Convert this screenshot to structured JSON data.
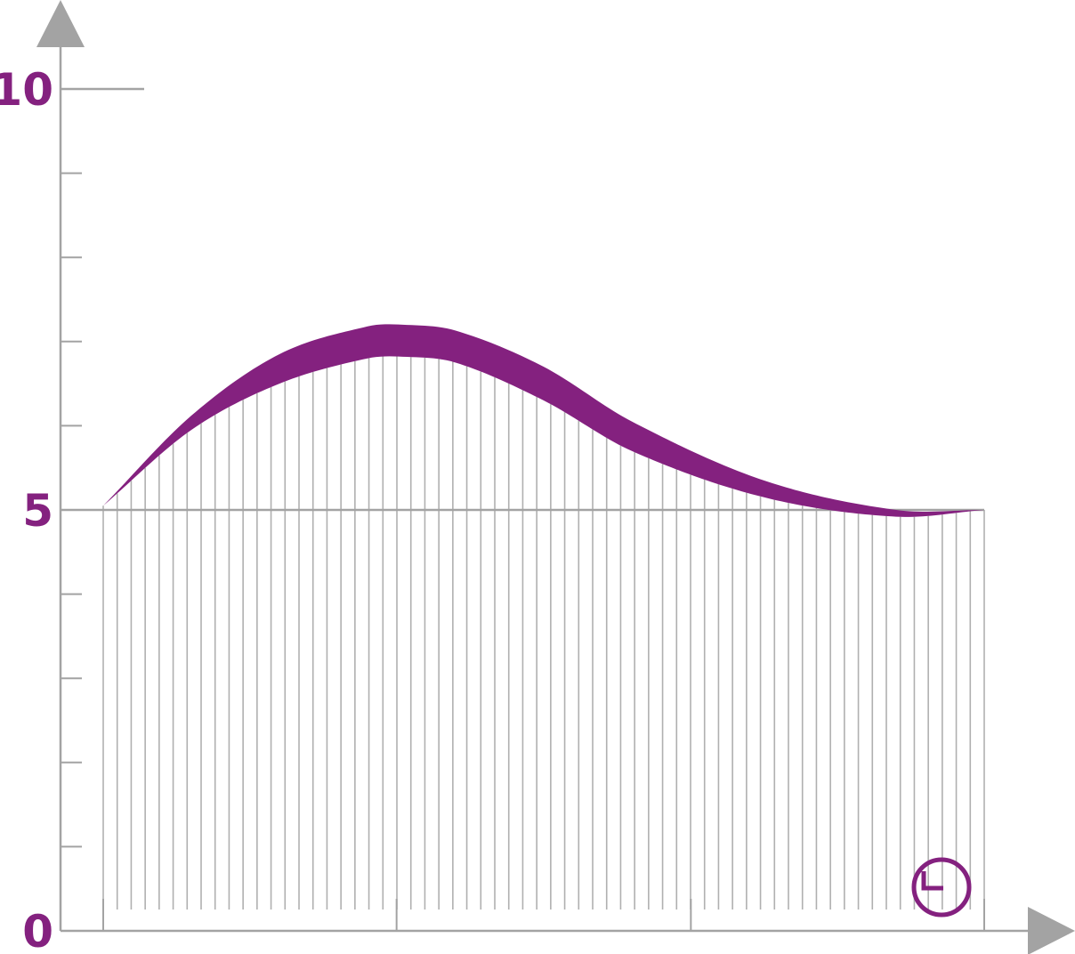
{
  "colors": {
    "accent": "#84217f",
    "axis": "#a3a3a3",
    "grid": "#b0b0b0"
  },
  "icons": {
    "time_axis": "clock-icon"
  },
  "chart_data": {
    "type": "area",
    "title": "",
    "xlabel": "",
    "ylabel": "",
    "y_ticks": [
      "0",
      "5",
      "10"
    ],
    "ylim": [
      0,
      10
    ],
    "xlim": [
      0,
      1
    ],
    "x_major_ticks": [
      0,
      0.333,
      0.667,
      1
    ],
    "y_minor_step": 1,
    "vertical_hatch_count": 64,
    "baseline": 5,
    "band": {
      "x": [
        0,
        0.1,
        0.2,
        0.3,
        0.34,
        0.4,
        0.5,
        0.6,
        0.75,
        0.9,
        1.0
      ],
      "upper": [
        5.05,
        6.12,
        6.85,
        7.18,
        7.2,
        7.13,
        6.7,
        6.05,
        5.35,
        5.0,
        5.0
      ],
      "lower": [
        5.05,
        5.95,
        6.5,
        6.8,
        6.82,
        6.75,
        6.3,
        5.7,
        5.15,
        4.92,
        5.0
      ]
    },
    "grid": false,
    "legend": "none"
  }
}
